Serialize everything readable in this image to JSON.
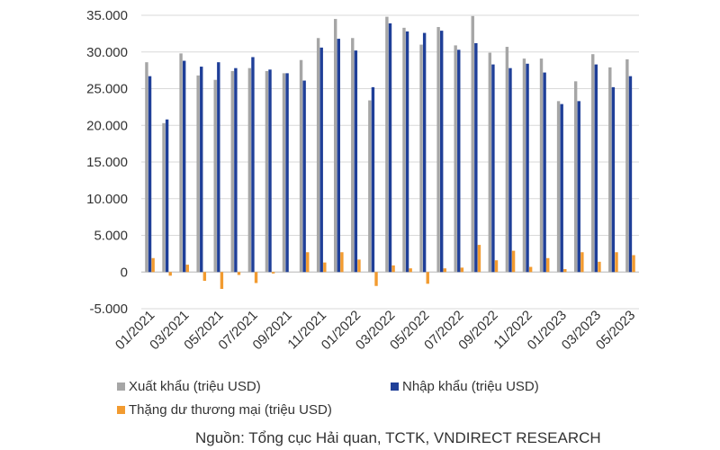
{
  "chart_data": {
    "type": "bar",
    "x": [
      "01/2021",
      "02/2021",
      "03/2021",
      "04/2021",
      "05/2021",
      "06/2021",
      "07/2021",
      "08/2021",
      "09/2021",
      "10/2021",
      "11/2021",
      "12/2021",
      "01/2022",
      "02/2022",
      "03/2022",
      "04/2022",
      "05/2022",
      "06/2022",
      "07/2022",
      "08/2022",
      "09/2022",
      "10/2022",
      "11/2022",
      "12/2022",
      "01/2023",
      "02/2023",
      "03/2023",
      "04/2023",
      "05/2023"
    ],
    "x_tick_labels": [
      "01/2021",
      "03/2021",
      "05/2021",
      "07/2021",
      "09/2021",
      "11/2021",
      "01/2022",
      "03/2022",
      "05/2022",
      "07/2022",
      "09/2022",
      "11/2022",
      "01/2023",
      "03/2023",
      "05/2023"
    ],
    "series": [
      {
        "name": "Xuất khẩu (triệu USD)",
        "color": "#a6a6a6",
        "values": [
          28600,
          20300,
          29800,
          26800,
          26200,
          27400,
          27800,
          27400,
          27100,
          28900,
          31900,
          34500,
          31900,
          23400,
          34800,
          33300,
          31000,
          33400,
          30900,
          34900,
          29900,
          30700,
          29100,
          29100,
          23300,
          26000,
          29700,
          27900,
          29000
        ]
      },
      {
        "name": "Nhập khẩu (triệu USD)",
        "color": "#1f3f98",
        "values": [
          26700,
          20800,
          28800,
          28000,
          28600,
          27800,
          29300,
          27600,
          27100,
          26100,
          30600,
          31800,
          30200,
          25200,
          33900,
          32800,
          32600,
          32900,
          30300,
          31200,
          28300,
          27800,
          28400,
          27200,
          22900,
          23300,
          28300,
          25200,
          26700
        ]
      },
      {
        "name": "Thặng dư thương mại (triệu USD)",
        "color": "#f29b30",
        "values": [
          1900,
          -500,
          1000,
          -1200,
          -2300,
          -400,
          -1500,
          -200,
          0,
          2700,
          1300,
          2700,
          1700,
          -1900,
          900,
          500,
          -1600,
          500,
          600,
          3700,
          1600,
          2900,
          700,
          1900,
          400,
          2700,
          1400,
          2700,
          2300
        ]
      }
    ],
    "ylim": [
      -5000,
      35000
    ],
    "y_ticks": [
      "-5.000",
      "0",
      "5.000",
      "10.000",
      "15.000",
      "20.000",
      "25.000",
      "30.000",
      "35.000"
    ],
    "y_tick_values": [
      -5000,
      0,
      5000,
      10000,
      15000,
      20000,
      25000,
      30000,
      35000
    ],
    "grid": true,
    "legend_position": "bottom-left",
    "title": "",
    "xlabel": "",
    "ylabel": ""
  },
  "source": "Nguồn: Tổng cục Hải quan, TCTK, VNDIRECT RESEARCH"
}
